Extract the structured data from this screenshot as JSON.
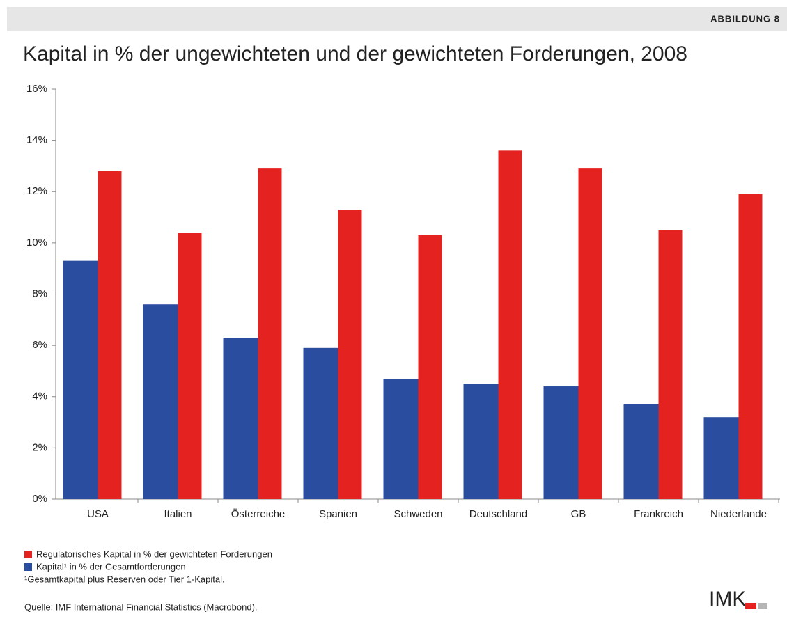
{
  "header": "ABBILDUNG 8",
  "chart_data": {
    "type": "bar",
    "title": "Kapital in % der ungewichteten und der gewichteten Forderungen, 2008",
    "categories": [
      "USA",
      "Italien",
      "Österreiche",
      "Spanien",
      "Schweden",
      "Deutschland",
      "GB",
      "Frankreich",
      "Niederlande"
    ],
    "series": [
      {
        "name": "Kapital¹ in % der Gesamtforderungen",
        "color": "#2a4d9f",
        "values": [
          9.3,
          7.6,
          6.3,
          5.9,
          4.7,
          4.5,
          4.4,
          3.7,
          3.2
        ]
      },
      {
        "name": "Regulatorisches Kapital in % der gewichteten Forderungen",
        "color": "#e42321",
        "values": [
          12.8,
          10.4,
          12.9,
          11.3,
          10.3,
          13.6,
          12.9,
          10.5,
          11.9
        ]
      }
    ],
    "ylim": [
      0,
      16
    ],
    "yticks": [
      {
        "value": 0,
        "label": "0%"
      },
      {
        "value": 2,
        "label": "2%"
      },
      {
        "value": 4,
        "label": "4%"
      },
      {
        "value": 6,
        "label": "6%"
      },
      {
        "value": 8,
        "label": "8%"
      },
      {
        "value": 10,
        "label": "10%"
      },
      {
        "value": 12,
        "label": "12%"
      },
      {
        "value": 14,
        "label": "14%"
      },
      {
        "value": 16,
        "label": "16%"
      }
    ],
    "grid": false
  },
  "footnote": "¹Gesamtkapital plus Reserven oder Tier 1-Kapital.",
  "source": "Quelle: IMF International Financial Statistics (Macrobond).",
  "logo": "IMK"
}
